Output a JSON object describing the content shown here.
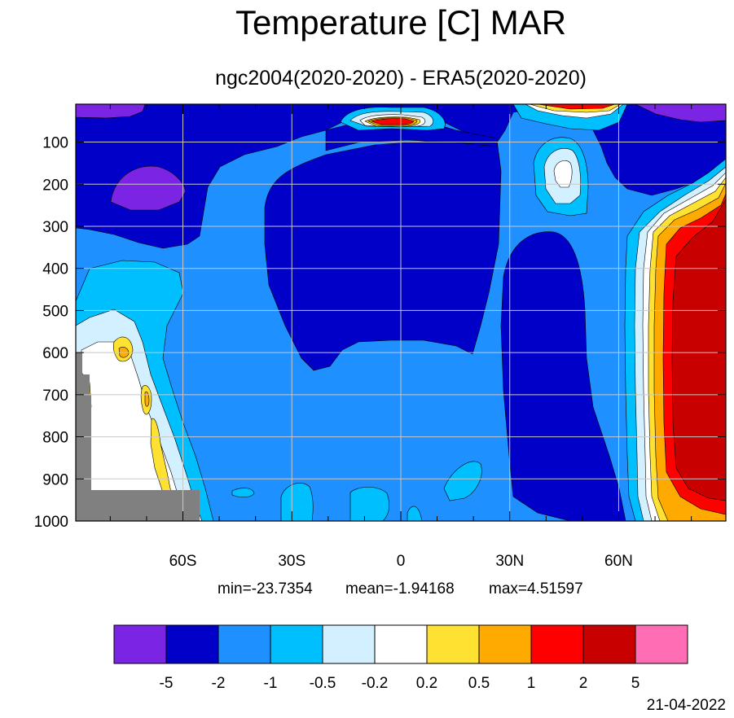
{
  "chart_data": {
    "type": "heatmap",
    "title": "Temperature [C] MAR",
    "subtitle": "ngc2004(2020-2020) - ERA5(2020-2020)",
    "xlabel": "",
    "ylabel": "",
    "x_ticks": [
      {
        "value": -60,
        "label": "60S"
      },
      {
        "value": -30,
        "label": "30S"
      },
      {
        "value": 0,
        "label": "0"
      },
      {
        "value": 30,
        "label": "30N"
      },
      {
        "value": 60,
        "label": "60N"
      }
    ],
    "xlim": [
      -89.5,
      89.5
    ],
    "y_ticks": [
      {
        "value": 100,
        "label": "100"
      },
      {
        "value": 200,
        "label": "200"
      },
      {
        "value": 300,
        "label": "300"
      },
      {
        "value": 400,
        "label": "400"
      },
      {
        "value": 500,
        "label": "500"
      },
      {
        "value": 600,
        "label": "600"
      },
      {
        "value": 700,
        "label": "700"
      },
      {
        "value": 800,
        "label": "800"
      },
      {
        "value": 900,
        "label": "900"
      },
      {
        "value": 1000,
        "label": "1000"
      }
    ],
    "ylim": [
      10,
      1000
    ],
    "y_inverted": true,
    "grid": true,
    "stats": {
      "min": "min=-23.7354",
      "mean": "mean=-1.94168",
      "max": "max=4.51597"
    },
    "colorbar": {
      "levels": [
        "-5",
        "-2",
        "-1",
        "-0.5",
        "-0.2",
        "0.2",
        "0.5",
        "1",
        "2",
        "5"
      ],
      "colors": [
        "#7c24e4",
        "#0000c8",
        "#1e90ff",
        "#00bfff",
        "#d2f0ff",
        "#ffffff",
        "#ffe132",
        "#ffaa00",
        "#ff0000",
        "#c80000",
        "#ff6eb4"
      ]
    },
    "missing_color": "#808080",
    "date": "21-04-2022"
  }
}
